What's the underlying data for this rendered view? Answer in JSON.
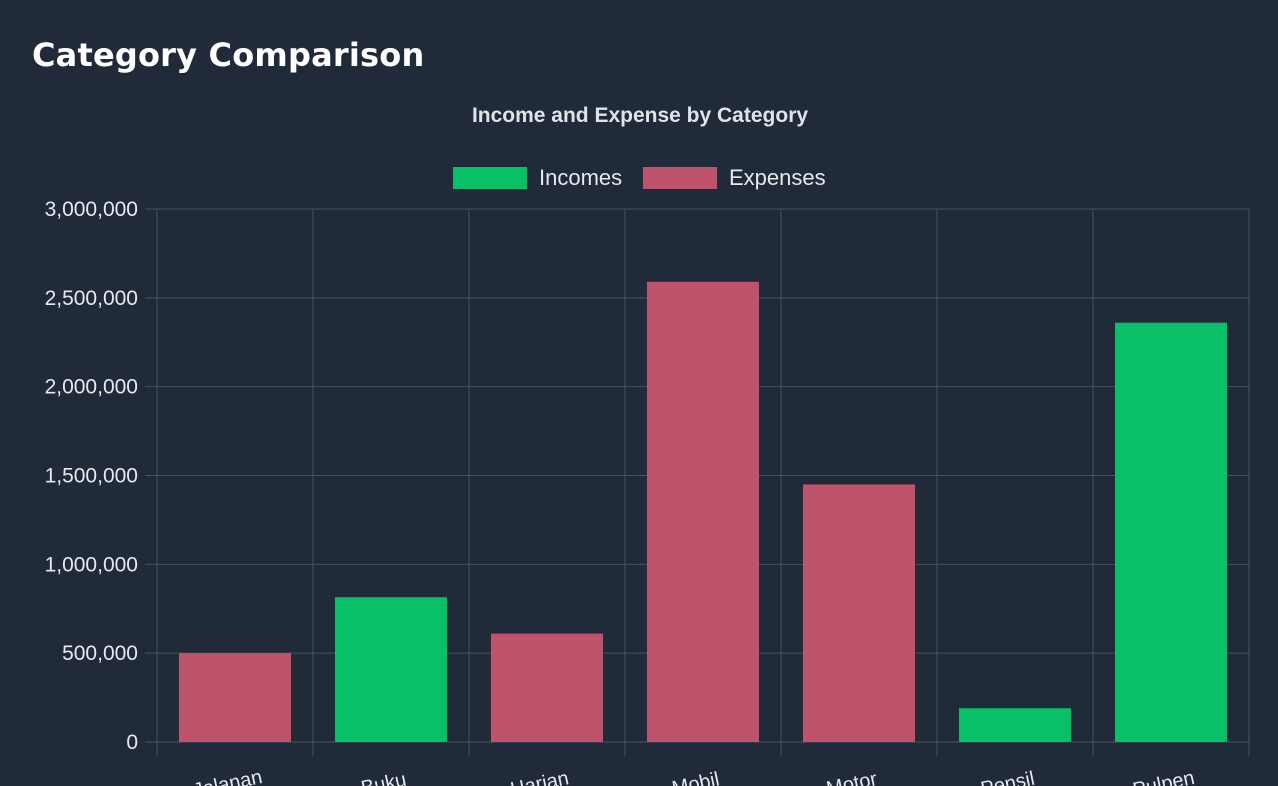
{
  "page": {
    "title": "Category Comparison"
  },
  "chart_data": {
    "type": "bar",
    "title": "Income and Expense by Category",
    "categories": [
      "Jalanan",
      "Buku",
      "Harian",
      "Mobil",
      "Motor",
      "Pensil",
      "Pulpen"
    ],
    "series": [
      {
        "name": "Incomes",
        "color": "#08c068",
        "values": [
          0,
          815000,
          0,
          0,
          0,
          190000,
          2360000
        ]
      },
      {
        "name": "Expenses",
        "color": "#bd546b",
        "values": [
          500000,
          0,
          610000,
          2590000,
          1450000,
          0,
          0
        ]
      }
    ],
    "ylim": [
      0,
      3000000
    ],
    "yticks": [
      0,
      500000,
      1000000,
      1500000,
      2000000,
      2500000,
      3000000
    ],
    "ytick_labels": [
      "0",
      "500,000",
      "1,000,000",
      "1,500,000",
      "2,000,000",
      "2,500,000",
      "3,000,000"
    ],
    "xlabel": "",
    "ylabel": "",
    "grid": true,
    "legend_position": "top"
  }
}
